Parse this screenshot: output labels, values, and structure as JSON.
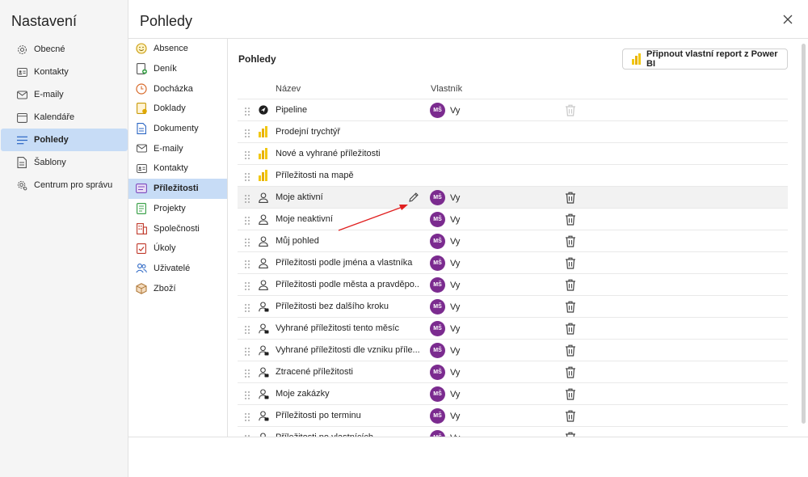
{
  "settings_title": "Nastavení",
  "page_title": "Pohledy",
  "nav": [
    {
      "label": "Obecné",
      "icon": "gear-icon"
    },
    {
      "label": "Kontakty",
      "icon": "contact-card-icon"
    },
    {
      "label": "E-maily",
      "icon": "mail-icon"
    },
    {
      "label": "Kalendáře",
      "icon": "calendar-icon"
    },
    {
      "label": "Pohledy",
      "icon": "list-icon",
      "active": true
    },
    {
      "label": "Šablony",
      "icon": "template-icon"
    },
    {
      "label": "Centrum pro správu",
      "icon": "admin-gear-icon"
    }
  ],
  "sub_nav": [
    {
      "label": "Absence",
      "icon": "smile-icon"
    },
    {
      "label": "Deník",
      "icon": "diary-icon"
    },
    {
      "label": "Docházka",
      "icon": "clock-icon"
    },
    {
      "label": "Doklady",
      "icon": "document-stamp-icon"
    },
    {
      "label": "Dokumenty",
      "icon": "documents-icon"
    },
    {
      "label": "E-maily",
      "icon": "mail-icon"
    },
    {
      "label": "Kontakty",
      "icon": "contact-card-icon"
    },
    {
      "label": "Příležitosti",
      "icon": "opportunity-icon",
      "active": true
    },
    {
      "label": "Projekty",
      "icon": "project-icon"
    },
    {
      "label": "Společnosti",
      "icon": "building-icon"
    },
    {
      "label": "Úkoly",
      "icon": "task-icon"
    },
    {
      "label": "Uživatelé",
      "icon": "users-icon"
    },
    {
      "label": "Zboží",
      "icon": "box-icon"
    }
  ],
  "main": {
    "title": "Pohledy",
    "pin_button_label": "Připnout vlastní report z Power BI",
    "col_name": "Název",
    "col_owner": "Vlastník"
  },
  "rows": [
    {
      "name": "Pipeline",
      "icon": "pipeline-icon",
      "owner_initials": "MŠ",
      "owner": "Vy",
      "trash_disabled": true
    },
    {
      "name": "Prodejní trychtýř",
      "icon": "powerbi-icon"
    },
    {
      "name": "Nové a vyhrané příležitosti",
      "icon": "powerbi-icon"
    },
    {
      "name": "Příležitosti na mapě",
      "icon": "powerbi-icon"
    },
    {
      "name": "Moje aktivní",
      "icon": "person-icon",
      "owner_initials": "MŠ",
      "owner": "Vy",
      "highlight": true
    },
    {
      "name": "Moje neaktivní",
      "icon": "person-icon",
      "owner_initials": "MŠ",
      "owner": "Vy"
    },
    {
      "name": "Můj pohled",
      "icon": "person-icon",
      "owner_initials": "MŠ",
      "owner": "Vy"
    },
    {
      "name": "Příležitosti podle jména a vlastníka",
      "icon": "person-icon",
      "owner_initials": "MŠ",
      "owner": "Vy"
    },
    {
      "name": "Příležitosti podle města a pravděpo...",
      "icon": "person-icon",
      "owner_initials": "MŠ",
      "owner": "Vy"
    },
    {
      "name": "Příležitosti bez dalšího kroku",
      "icon": "person-shared-icon",
      "owner_initials": "MŠ",
      "owner": "Vy"
    },
    {
      "name": "Vyhrané příležitosti tento měsíc",
      "icon": "person-shared-icon",
      "owner_initials": "MŠ",
      "owner": "Vy"
    },
    {
      "name": "Vyhrané příležitosti dle vzniku příle...",
      "icon": "person-shared-icon",
      "owner_initials": "MŠ",
      "owner": "Vy"
    },
    {
      "name": "Ztracené příležitosti",
      "icon": "person-shared-icon",
      "owner_initials": "MŠ",
      "owner": "Vy"
    },
    {
      "name": "Moje zakázky",
      "icon": "person-shared-icon",
      "owner_initials": "MŠ",
      "owner": "Vy"
    },
    {
      "name": "Příležitosti po terminu",
      "icon": "person-shared-icon",
      "owner_initials": "MŠ",
      "owner": "Vy"
    },
    {
      "name": "Příležitosti po vlastnících",
      "icon": "person-shared-icon",
      "owner_initials": "MŠ",
      "owner": "Vy"
    }
  ],
  "colors": {
    "accent": "#c7dcf6",
    "avatar": "#7b2b8f",
    "arrow": "#e02020"
  }
}
